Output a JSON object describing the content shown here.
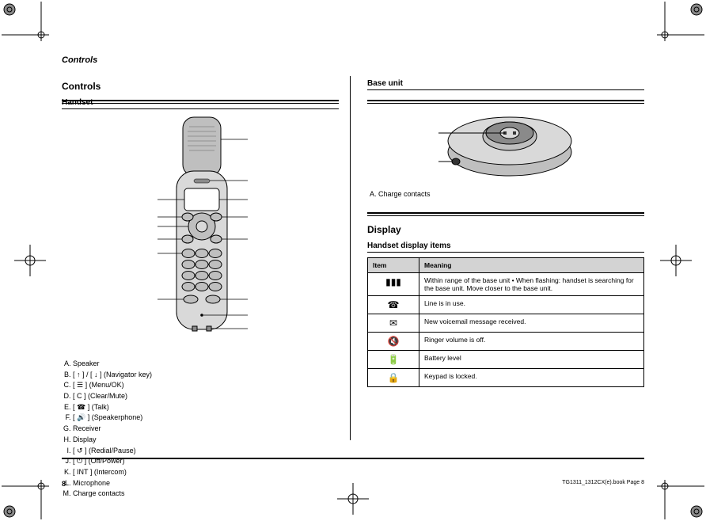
{
  "page": {
    "header_category": "Controls",
    "page_number": "8",
    "doc_ref": "TG1311_1312CX(e).book  Page 8"
  },
  "left": {
    "section": "Controls",
    "subsection": "Handset",
    "callouts": [
      "Speaker",
      "[ ↑ ] / [ ↓ ] (Navigator key)",
      "[ ☰ ] (Menu/OK)",
      "[ C ] (Clear/Mute)",
      "[ ☎ ] (Talk)",
      "[ 🔊 ] (Speakerphone)",
      "Receiver",
      "Display",
      "[ ↺ ] (Redial/Pause)",
      "[ ⏻ ] (Off/Power)",
      "[ INT ] (Intercom)",
      "Microphone",
      "Charge contacts"
    ]
  },
  "right": {
    "base_section": "Base unit",
    "base_callouts": [
      "Charge contacts"
    ],
    "display_section": "Display",
    "display_sub": "Handset display items",
    "table": {
      "headers": [
        "Item",
        "Meaning"
      ],
      "rows": [
        {
          "icon": "▮▮▮",
          "meaning": "Within range of the base unit\n• When flashing: handset is searching for the base unit. Move closer to the base unit."
        },
        {
          "icon": "☎",
          "meaning": "Line is in use."
        },
        {
          "icon": "✉",
          "meaning": "New voicemail message received."
        },
        {
          "icon": "🔇",
          "meaning": "Ringer volume is off."
        },
        {
          "icon": "🔋",
          "meaning": "Battery level"
        },
        {
          "icon": "🔒",
          "meaning": "Keypad is locked."
        }
      ]
    }
  },
  "colors": {
    "fill_light": "#d9d9d9",
    "fill_mid": "#bfbfbf",
    "fill_dark": "#8a8a8a",
    "stroke": "#000000",
    "header_bg": "#d3d3d3"
  }
}
